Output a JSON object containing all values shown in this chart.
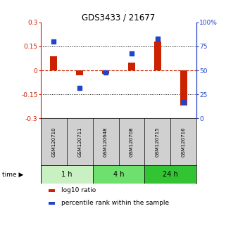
{
  "title": "GDS3433 / 21677",
  "samples": [
    "GSM120710",
    "GSM120711",
    "GSM120648",
    "GSM120708",
    "GSM120715",
    "GSM120716"
  ],
  "log10_ratio": [
    0.09,
    -0.03,
    -0.02,
    0.05,
    0.18,
    -0.22
  ],
  "percentile_rank": [
    80,
    32,
    48,
    68,
    83,
    17
  ],
  "time_groups": [
    {
      "label": "1 h",
      "start": 0,
      "end": 2
    },
    {
      "label": "4 h",
      "start": 2,
      "end": 4
    },
    {
      "label": "24 h",
      "start": 4,
      "end": 6
    }
  ],
  "time_colors": [
    "#c8f0c0",
    "#6ee06e",
    "#33c433"
  ],
  "ylim_left": [
    -0.3,
    0.3
  ],
  "ylim_right": [
    0,
    100
  ],
  "yticks_left": [
    -0.3,
    -0.15,
    0.0,
    0.15,
    0.3
  ],
  "yticks_right": [
    0,
    25,
    50,
    75,
    100
  ],
  "ytick_labels_left": [
    "-0.3",
    "-0.15",
    "0",
    "0.15",
    "0.3"
  ],
  "ytick_labels_right": [
    "0",
    "25",
    "50",
    "75",
    "100%"
  ],
  "hlines": [
    0.15,
    -0.15
  ],
  "red_color": "#cc2200",
  "blue_color": "#2244cc",
  "legend_items": [
    "log10 ratio",
    "percentile rank within the sample"
  ],
  "bg_color": "#ffffff",
  "sample_bg": "#d0d0d0"
}
